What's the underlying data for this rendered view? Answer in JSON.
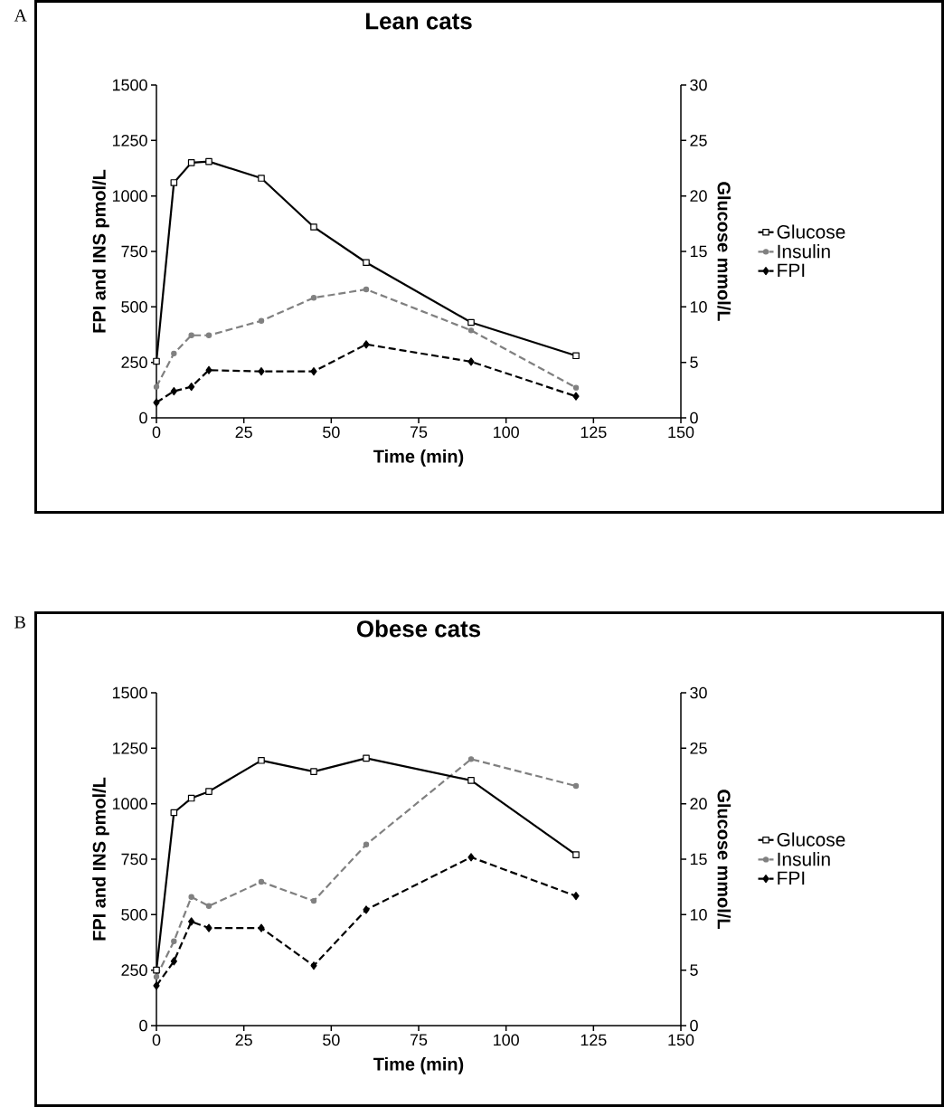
{
  "chart_data": [
    {
      "type": "line",
      "title": "Lean cats",
      "xlabel": "Time (min)",
      "ylabel": "FPI and INS pmol/L",
      "y2label": "Glucose mmol/L",
      "annotations": [
        "A"
      ],
      "x": [
        0,
        5,
        10,
        15,
        30,
        45,
        60,
        90,
        120
      ],
      "xlim": [
        0,
        150
      ],
      "xticks": [
        0,
        25,
        50,
        75,
        100,
        125,
        150
      ],
      "ylim": [
        0,
        1500
      ],
      "yticks": [
        0,
        250,
        500,
        750,
        1000,
        1250,
        1500
      ],
      "y2lim": [
        0,
        30
      ],
      "y2ticks": [
        0,
        5,
        10,
        15,
        20,
        25,
        30
      ],
      "legend": "right",
      "grid": false,
      "series": [
        {
          "name": "Glucose",
          "color": "#000000",
          "axis": "y2",
          "marker": "square",
          "line_style": "solid",
          "values": [
            5.1,
            21.2,
            23.0,
            23.1,
            21.6,
            17.2,
            14.0,
            8.6,
            5.6
          ]
        },
        {
          "name": "Insulin",
          "color": "#808080",
          "marker": "circle",
          "line_style": "dashed",
          "values": [
            140,
            290,
            372,
            372,
            437,
            541,
            579,
            394,
            136
          ]
        },
        {
          "name": "FPI",
          "color": "#000000",
          "marker": "diamond",
          "line_style": "dashed",
          "values": [
            69,
            120,
            140,
            215,
            209,
            209,
            331,
            253,
            97
          ]
        }
      ]
    },
    {
      "type": "line",
      "title": "Obese cats",
      "xlabel": "Time (min)",
      "ylabel": "FPI and INS pmol/L",
      "y2label": "Glucose mmol/L",
      "annotations": [
        "B"
      ],
      "x": [
        0,
        5,
        10,
        15,
        30,
        45,
        60,
        90,
        120
      ],
      "xlim": [
        0,
        150
      ],
      "xticks": [
        0,
        25,
        50,
        75,
        100,
        125,
        150
      ],
      "ylim": [
        0,
        1500
      ],
      "yticks": [
        0,
        250,
        500,
        750,
        1000,
        1250,
        1500
      ],
      "y2lim": [
        0,
        30
      ],
      "y2ticks": [
        0,
        5,
        10,
        15,
        20,
        25,
        30
      ],
      "legend": "right",
      "grid": false,
      "series": [
        {
          "name": "Glucose",
          "color": "#000000",
          "axis": "y2",
          "marker": "square",
          "line_style": "solid",
          "values": [
            5.0,
            19.2,
            20.5,
            21.1,
            23.9,
            22.9,
            24.1,
            22.1,
            15.4
          ]
        },
        {
          "name": "Insulin",
          "color": "#808080",
          "marker": "circle",
          "line_style": "dashed",
          "values": [
            220,
            380,
            580,
            539,
            648,
            562,
            816,
            1201,
            1080
          ]
        },
        {
          "name": "FPI",
          "color": "#000000",
          "marker": "diamond",
          "line_style": "dashed",
          "values": [
            180,
            290,
            469,
            440,
            440,
            270,
            522,
            759,
            584
          ]
        }
      ]
    }
  ]
}
